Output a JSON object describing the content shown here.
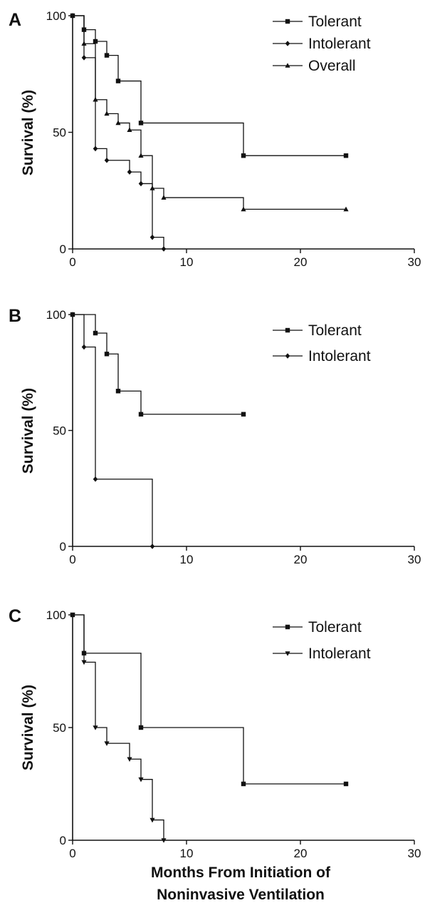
{
  "chart_data": [
    {
      "type": "line",
      "panel": "A",
      "ylabel": "Survival (%)",
      "xlim": [
        0,
        30
      ],
      "ylim": [
        0,
        100
      ],
      "xticks": [
        "0",
        "10",
        "20",
        "30"
      ],
      "yticks": [
        "0",
        "50",
        "100"
      ],
      "legend_position": "top-right",
      "series": [
        {
          "name": "Tolerant",
          "marker": "square",
          "x": [
            0,
            1,
            2,
            3,
            4,
            6,
            15,
            24
          ],
          "y": [
            100,
            94,
            89,
            83,
            72,
            54,
            40,
            40
          ]
        },
        {
          "name": "Intolerant",
          "marker": "diamond",
          "x": [
            0,
            1,
            2,
            3,
            5,
            6,
            7,
            8
          ],
          "y": [
            100,
            82,
            43,
            38,
            33,
            28,
            5,
            0
          ]
        },
        {
          "name": "Overall",
          "marker": "triangle",
          "x": [
            0,
            1,
            2,
            3,
            4,
            5,
            6,
            7,
            8,
            15,
            24
          ],
          "y": [
            100,
            88,
            64,
            58,
            54,
            51,
            40,
            26,
            22,
            17,
            17
          ]
        }
      ]
    },
    {
      "type": "line",
      "panel": "B",
      "ylabel": "Survival (%)",
      "xlim": [
        0,
        30
      ],
      "ylim": [
        0,
        100
      ],
      "xticks": [
        "0",
        "10",
        "20",
        "30"
      ],
      "yticks": [
        "0",
        "50",
        "100"
      ],
      "legend_position": "top-right",
      "series": [
        {
          "name": "Tolerant",
          "marker": "square",
          "x": [
            0,
            2,
            3,
            4,
            6,
            15
          ],
          "y": [
            100,
            92,
            83,
            67,
            57,
            57
          ]
        },
        {
          "name": "Intolerant",
          "marker": "diamond",
          "x": [
            0,
            1,
            2,
            7
          ],
          "y": [
            100,
            86,
            29,
            0
          ]
        }
      ]
    },
    {
      "type": "line",
      "panel": "C",
      "ylabel": "Survival (%)",
      "xlabel_lines": [
        "Months From Initiation of",
        "Noninvasive Ventilation"
      ],
      "xlim": [
        0,
        30
      ],
      "ylim": [
        0,
        100
      ],
      "xticks": [
        "0",
        "10",
        "20",
        "30"
      ],
      "yticks": [
        "0",
        "50",
        "100"
      ],
      "legend_position": "top-right",
      "series": [
        {
          "name": "Tolerant",
          "marker": "square",
          "x": [
            0,
            1,
            6,
            15,
            24
          ],
          "y": [
            100,
            83,
            50,
            25,
            25
          ]
        },
        {
          "name": "Intolerant",
          "marker": "triangle-down",
          "x": [
            0,
            1,
            2,
            3,
            5,
            6,
            7,
            8
          ],
          "y": [
            100,
            79,
            50,
            43,
            36,
            27,
            9,
            0
          ]
        }
      ]
    }
  ]
}
